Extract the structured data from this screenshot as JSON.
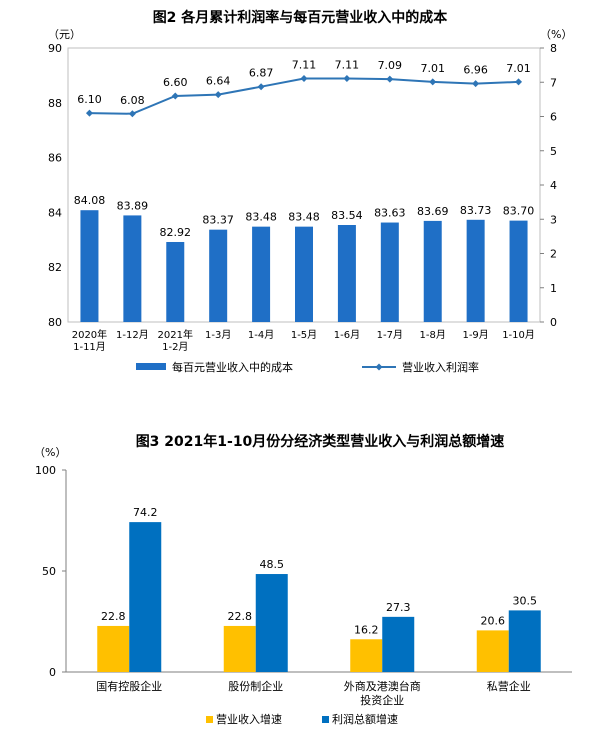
{
  "chart_data": [
    {
      "type": "bar+line",
      "title": "图2  各月累计利润率与每百元营业收入中的成本",
      "left_unit": "（元）",
      "right_unit": "（%）",
      "categories": [
        [
          "2020年",
          "1-11月"
        ],
        [
          "1-12月"
        ],
        [
          "2021年",
          "1-2月"
        ],
        [
          "1-3月"
        ],
        [
          "1-4月"
        ],
        [
          "1-5月"
        ],
        [
          "1-6月"
        ],
        [
          "1-7月"
        ],
        [
          "1-8月"
        ],
        [
          "1-9月"
        ],
        [
          "1-10月"
        ]
      ],
      "bar_series": {
        "name": "每百元营业收入中的成本",
        "values": [
          84.08,
          83.89,
          82.92,
          83.37,
          83.48,
          83.48,
          83.54,
          83.63,
          83.69,
          83.73,
          83.7
        ],
        "labels": [
          "84.08",
          "83.89",
          "82.92",
          "83.37",
          "83.48",
          "83.48",
          "83.54",
          "83.63",
          "83.69",
          "83.73",
          "83.70"
        ],
        "color": "#1f6fc6"
      },
      "line_series": {
        "name": "营业收入利润率",
        "values": [
          6.1,
          6.08,
          6.6,
          6.64,
          6.87,
          7.11,
          7.11,
          7.09,
          7.01,
          6.96,
          7.01
        ],
        "labels": [
          "6.10",
          "6.08",
          "6.60",
          "6.64",
          "6.87",
          "7.11",
          "7.11",
          "7.09",
          "7.01",
          "6.96",
          "7.01"
        ],
        "color": "#2e75b6"
      },
      "left_axis": {
        "ylim": [
          80,
          90
        ],
        "ticks": [
          "80",
          "82",
          "84",
          "86",
          "88",
          "90"
        ]
      },
      "right_axis": {
        "ylim": [
          0,
          8
        ],
        "ticks": [
          "0",
          "1",
          "2",
          "3",
          "4",
          "5",
          "6",
          "7",
          "8"
        ]
      },
      "legend_position": "bottom"
    },
    {
      "type": "bar",
      "title": "图3  2021年1-10月份分经济类型营业收入与利润总额增速",
      "y_unit": "（%）",
      "ylim": [
        0,
        100
      ],
      "yticks": [
        "0",
        "50",
        "100"
      ],
      "categories": [
        [
          "国有控股企业"
        ],
        [
          "股份制企业"
        ],
        [
          "外商及港澳台商",
          "投资企业"
        ],
        [
          "私营企业"
        ]
      ],
      "series": [
        {
          "name": "营业收入增速",
          "values": [
            22.8,
            22.8,
            16.2,
            20.6
          ],
          "labels": [
            "22.8",
            "22.8",
            "16.2",
            "20.6"
          ],
          "color": "#ffc000"
        },
        {
          "name": "利润总额增速",
          "values": [
            74.2,
            48.5,
            27.3,
            30.5
          ],
          "labels": [
            "74.2",
            "48.5",
            "27.3",
            "30.5"
          ],
          "color": "#0070c0"
        }
      ],
      "legend_position": "bottom-left"
    }
  ]
}
